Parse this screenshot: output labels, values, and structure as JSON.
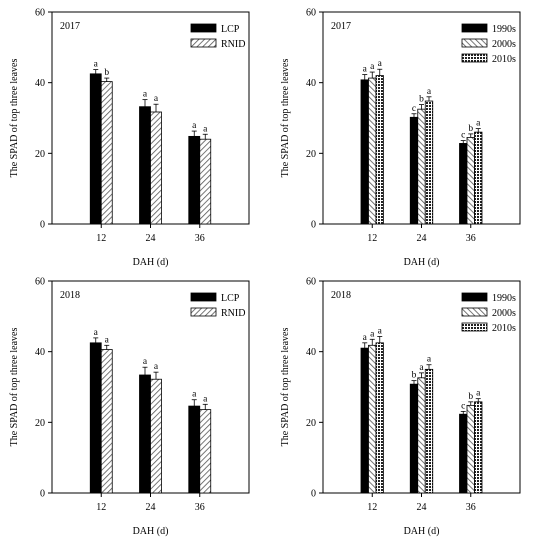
{
  "patterns": {
    "solid": "#000000",
    "hatch_fwd": "diagonal-hatch-forward",
    "hatch_back": "diagonal-hatch-backward"
  },
  "chart_data": [
    {
      "type": "bar",
      "panel_label": "2017",
      "xlabel": "DAH (d)",
      "ylabel": "The SPAD of top three leaves",
      "ylim": [
        0,
        60
      ],
      "yticks": [
        0,
        20,
        40,
        60
      ],
      "categories": [
        "12",
        "24",
        "36"
      ],
      "legend_position": "top-right",
      "series": [
        {
          "name": "LCP",
          "fill": "solid",
          "values": [
            42.5,
            33.2,
            24.8
          ],
          "errors": [
            1.2,
            2.0,
            1.5
          ],
          "letters": [
            "a",
            "a",
            "a"
          ]
        },
        {
          "name": "RNID",
          "fill": "hatch_fwd",
          "values": [
            40.3,
            31.7,
            24.0
          ],
          "errors": [
            1.0,
            2.2,
            1.4
          ],
          "letters": [
            "b",
            "a",
            "a"
          ]
        }
      ]
    },
    {
      "type": "bar",
      "panel_label": "2017",
      "xlabel": "DAH (d)",
      "ylabel": "The SPAD of top three leaves",
      "ylim": [
        0,
        60
      ],
      "yticks": [
        0,
        20,
        40,
        60
      ],
      "categories": [
        "12",
        "24",
        "36"
      ],
      "legend_position": "top-right",
      "series": [
        {
          "name": "1990s",
          "fill": "solid",
          "values": [
            40.8,
            30.2,
            22.8
          ],
          "errors": [
            1.5,
            1.0,
            0.8
          ],
          "letters": [
            "a",
            "c",
            "c"
          ]
        },
        {
          "name": "2000s",
          "fill": "hatch_back",
          "values": [
            41.3,
            32.5,
            24.5
          ],
          "errors": [
            1.7,
            1.3,
            1.0
          ],
          "letters": [
            "a",
            "b",
            "b"
          ]
        },
        {
          "name": "2010s",
          "fill": "crosshatch",
          "values": [
            42.0,
            34.8,
            26.0
          ],
          "errors": [
            1.8,
            1.2,
            1.0
          ],
          "letters": [
            "a",
            "a",
            "a"
          ]
        }
      ]
    },
    {
      "type": "bar",
      "panel_label": "2018",
      "xlabel": "DAH (d)",
      "ylabel": "The SPAD of top three leaves",
      "ylim": [
        0,
        60
      ],
      "yticks": [
        0,
        20,
        40,
        60
      ],
      "categories": [
        "12",
        "24",
        "36"
      ],
      "legend_position": "top-right",
      "series": [
        {
          "name": "LCP",
          "fill": "solid",
          "values": [
            42.5,
            33.4,
            24.6
          ],
          "errors": [
            1.4,
            2.2,
            1.8
          ],
          "letters": [
            "a",
            "a",
            "a"
          ]
        },
        {
          "name": "RNID",
          "fill": "hatch_fwd",
          "values": [
            40.6,
            32.2,
            23.6
          ],
          "errors": [
            1.2,
            2.0,
            1.5
          ],
          "letters": [
            "a",
            "a",
            "a"
          ]
        }
      ]
    },
    {
      "type": "bar",
      "panel_label": "2018",
      "xlabel": "DAH (d)",
      "ylabel": "The SPAD of top three leaves",
      "ylim": [
        0,
        60
      ],
      "yticks": [
        0,
        20,
        40,
        60
      ],
      "categories": [
        "12",
        "24",
        "36"
      ],
      "legend_position": "top-right",
      "series": [
        {
          "name": "1990s",
          "fill": "solid",
          "values": [
            41.0,
            30.8,
            22.3
          ],
          "errors": [
            1.5,
            1.0,
            0.8
          ],
          "letters": [
            "a",
            "b",
            "c"
          ]
        },
        {
          "name": "2000s",
          "fill": "hatch_back",
          "values": [
            41.8,
            32.6,
            24.8
          ],
          "errors": [
            1.7,
            1.4,
            1.0
          ],
          "letters": [
            "a",
            "a",
            "b"
          ]
        },
        {
          "name": "2010s",
          "fill": "crosshatch",
          "values": [
            42.5,
            35.0,
            25.8
          ],
          "errors": [
            1.8,
            1.3,
            0.9
          ],
          "letters": [
            "a",
            "a",
            "a"
          ]
        }
      ]
    }
  ]
}
